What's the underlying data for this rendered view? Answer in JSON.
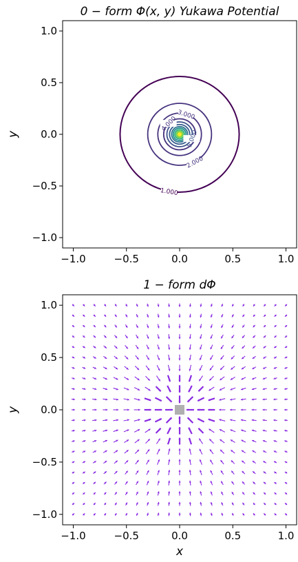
{
  "chart_data": [
    {
      "type": "contour",
      "title": "0 − form Φ(x, y) Yukawa Potential",
      "xlabel": "",
      "ylabel": "y",
      "xlim": [
        -1.1,
        1.1
      ],
      "ylim": [
        -1.1,
        1.1
      ],
      "xticks": [
        "−1.0",
        "−0.5",
        "0.0",
        "0.5",
        "1.0"
      ],
      "yticks": [
        "−1.0",
        "−0.5",
        "0.0",
        "0.5",
        "1.0"
      ],
      "levels": [
        {
          "value": 1.0,
          "radius": 0.56,
          "color": "#440154",
          "label": "1.000"
        },
        {
          "value": 2.0,
          "radius": 0.3,
          "color": "#46327e",
          "label": "2.000"
        },
        {
          "value": 3.0,
          "radius": 0.205,
          "color": "#46327e",
          "label": "3.000"
        },
        {
          "value": 4.0,
          "radius": 0.15,
          "color": "#46327e",
          "label": "4.000"
        },
        {
          "value": 5.0,
          "radius": 0.12,
          "color": "#3b528b",
          "label": "5.000"
        },
        {
          "value": 6.0,
          "radius": 0.095,
          "color": "#365c8d",
          "label": ""
        },
        {
          "value": 7.0,
          "radius": 0.075,
          "color": "#2c728e",
          "label": ""
        },
        {
          "value": 8.0,
          "radius": 0.06,
          "color": "#21918c",
          "label": ""
        },
        {
          "value": 9.0,
          "radius": 0.045,
          "color": "#28ae80",
          "label": ""
        },
        {
          "value": 10.0,
          "radius": 0.032,
          "color": "#5ec962",
          "label": ""
        },
        {
          "value": 11.0,
          "radius": 0.02,
          "color": "#addc30",
          "label": ""
        },
        {
          "value": 12.0,
          "radius": 0.01,
          "color": "#fde725",
          "label": ""
        }
      ]
    },
    {
      "type": "quiver",
      "title": "1 − form dΦ",
      "xlabel": "x",
      "ylabel": "y",
      "xlim": [
        -1.1,
        1.1
      ],
      "ylim": [
        -1.1,
        1.1
      ],
      "xticks": [
        "−1.0",
        "−0.5",
        "0.0",
        "0.5",
        "1.0"
      ],
      "yticks": [
        "−1.0",
        "−0.5",
        "0.0",
        "0.5",
        "1.0"
      ],
      "grid": {
        "x_start": -1.0,
        "x_end": 1.0,
        "y_start": -1.0,
        "y_end": 1.0,
        "n": 21
      },
      "color": "#8a2be2",
      "center_marker": {
        "x": 0.0,
        "y": 0.0,
        "color": "#b0b0b0"
      }
    }
  ]
}
